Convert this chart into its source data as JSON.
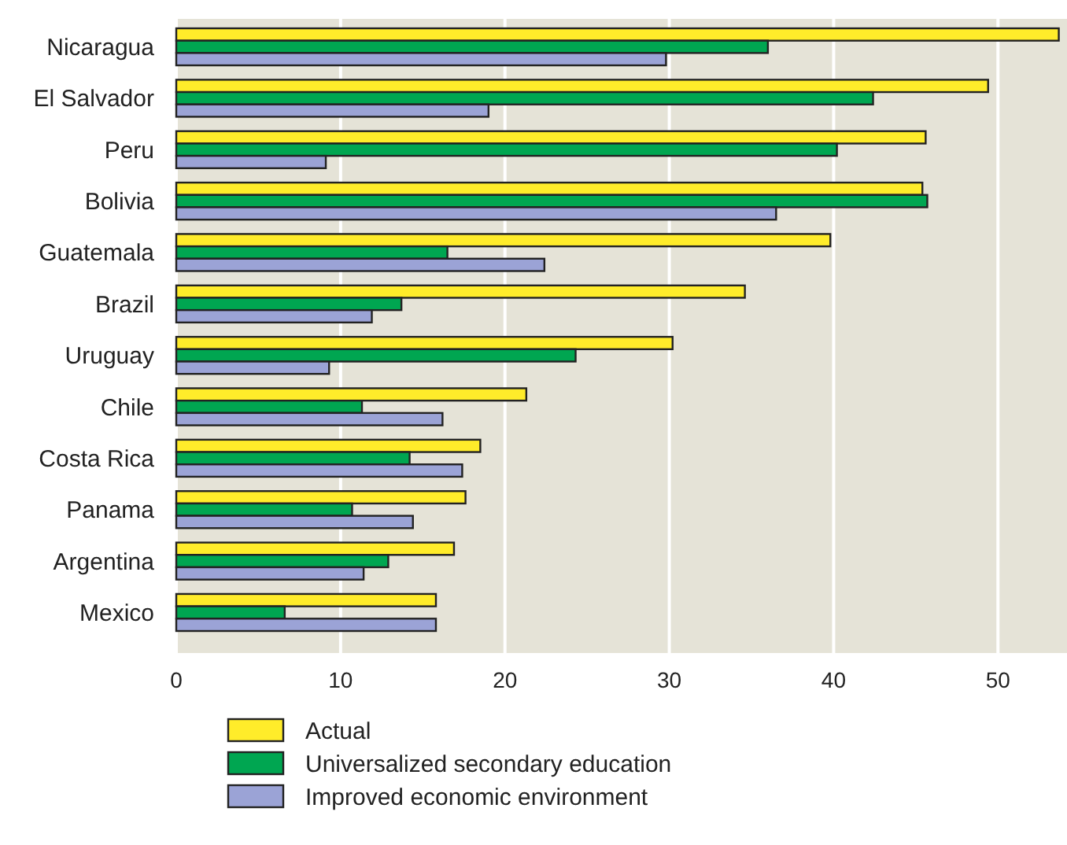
{
  "chart_data": {
    "type": "bar",
    "orientation": "horizontal",
    "categories": [
      "Nicaragua",
      "El Salvador",
      "Peru",
      "Bolivia",
      "Guatemala",
      "Brazil",
      "Uruguay",
      "Chile",
      "Costa Rica",
      "Panama",
      "Argentina",
      "Mexico"
    ],
    "series": [
      {
        "name": "Actual",
        "color": "#ffec2a",
        "values": [
          53.7,
          49.4,
          45.6,
          45.4,
          39.8,
          34.6,
          30.2,
          21.3,
          18.5,
          17.6,
          16.9,
          15.8
        ]
      },
      {
        "name": "Universalized secondary education",
        "color": "#00a651",
        "values": [
          36.0,
          42.4,
          40.2,
          45.7,
          16.5,
          13.7,
          24.3,
          11.3,
          14.2,
          10.7,
          12.9,
          6.6
        ]
      },
      {
        "name": "Improved economic environment",
        "color": "#9ba3d6",
        "values": [
          29.8,
          19.0,
          9.1,
          36.5,
          22.4,
          11.9,
          9.3,
          16.2,
          17.4,
          14.4,
          11.4,
          15.8
        ]
      }
    ],
    "xlim": [
      0,
      54.2
    ],
    "xticks": [
      0,
      10,
      20,
      30,
      40,
      50
    ],
    "grid": "x",
    "legend": "bottom"
  }
}
